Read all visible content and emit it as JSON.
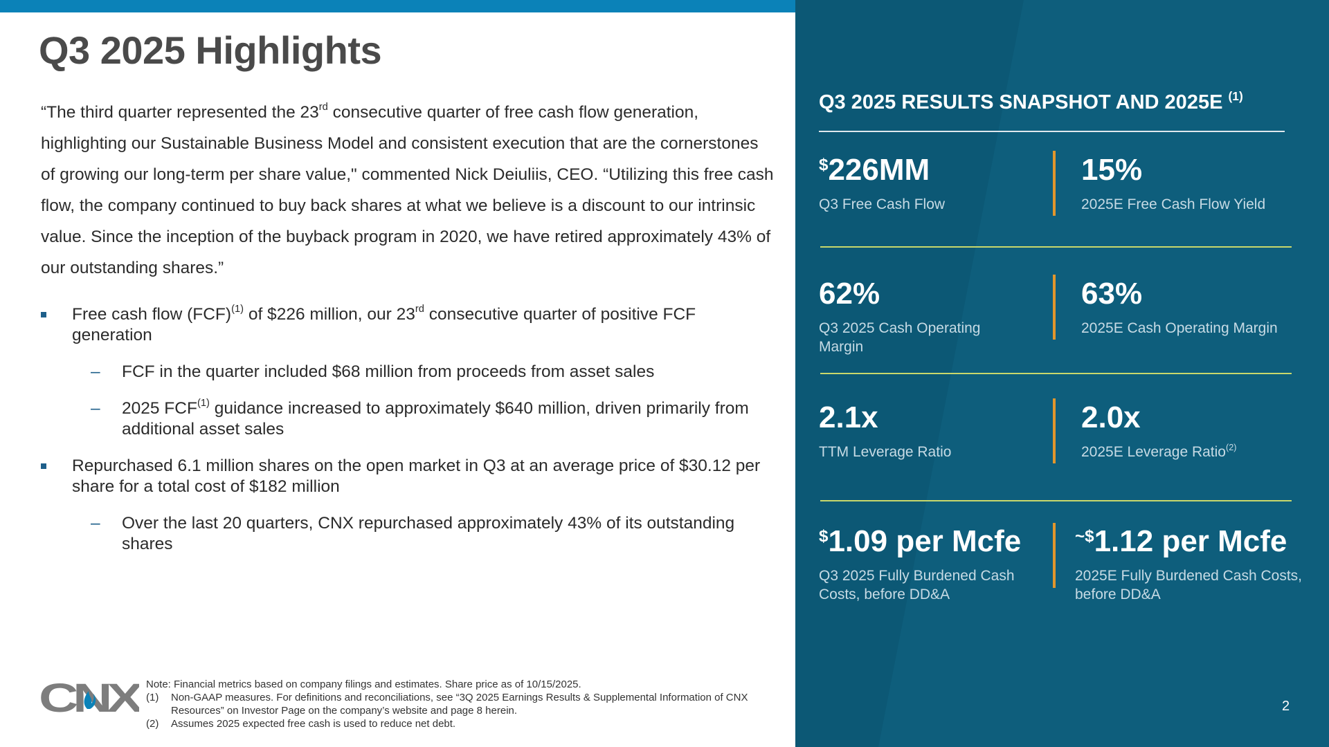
{
  "title": "Q3 2025 Highlights",
  "quote": {
    "p1": "“The third quarter represented the 23",
    "p1_sup": "rd",
    "p2": " consecutive quarter of free cash flow generation, highlighting our Sustainable Business Model and consistent execution that are the cornerstones of growing our long-term per share value,\" commented Nick Deiuliis, CEO. “Utilizing this free cash flow, the company continued to buy back shares at what we believe is a discount to our intrinsic value. Since the inception of the buyback program in 2020, we have retired approximately 43% of our outstanding shares.”"
  },
  "bullets": {
    "b1": {
      "t1": "Free cash flow (FCF)",
      "s1": "(1)",
      "t2": " of $226 million, our 23",
      "s2": "rd",
      "t3": " consecutive quarter of positive FCF generation"
    },
    "b1a": "FCF in the quarter included $68 million from proceeds from asset sales",
    "b1b": {
      "t1": "2025 FCF",
      "s1": "(1)",
      "t2": " guidance increased to approximately $640 million, driven primarily from additional asset sales"
    },
    "b2": "Repurchased 6.1 million shares on the open market in Q3 at an average price of $30.12 per share for a total cost of $182 million",
    "b2a": "Over the last 20 quarters, CNX repurchased approximately 43% of its outstanding shares",
    "square_marker": "▪",
    "dash_marker": "–"
  },
  "snapshot": {
    "title": "Q3 2025 RESULTS SNAPSHOT AND 2025E",
    "title_sup": "(1)",
    "m1": {
      "prefix": "$",
      "value": "226MM",
      "label": "Q3 Free Cash Flow"
    },
    "m2": {
      "value": "15%",
      "label": "2025E Free Cash Flow Yield"
    },
    "m3": {
      "value": "62%",
      "label": "Q3 2025 Cash Operating Margin"
    },
    "m4": {
      "value": "63%",
      "label": "2025E Cash Operating Margin"
    },
    "m5": {
      "value": "2.1x",
      "label": "TTM Leverage Ratio"
    },
    "m6": {
      "value": "2.0x",
      "label": "2025E Leverage Ratio",
      "label_sup": "(2)"
    },
    "m7": {
      "prefix": "$",
      "value": "1.09 per Mcfe",
      "label": "Q3 2025 Fully Burdened Cash Costs, before DD&A"
    },
    "m8": {
      "prefix": "~$",
      "value": "1.12 per Mcfe",
      "label": "2025E Fully Burdened Cash Costs, before DD&A"
    }
  },
  "footer": {
    "logo_text": "CNX",
    "note": "Note: Financial metrics based on company filings and estimates. Share price as of 10/15/2025.",
    "n1_num": "(1)",
    "n1_text": "Non-GAAP measures. For definitions and reconciliations, see “3Q 2025 Earnings Results & Supplemental Information of CNX Resources” on Investor Page on the company’s website and page 8 herein.",
    "n2_num": "(2)",
    "n2_text": "Assumes 2025 expected free cash is used to reduce net debt."
  },
  "page_number": "2",
  "colors": {
    "top_bar": "#0b82b8",
    "panel": "#0e5e7c",
    "accent_divider": "#e2962c",
    "row_rule": "#c9d86b",
    "logo_gray": "#7d7d7d",
    "logo_blue": "#0b82b8"
  }
}
